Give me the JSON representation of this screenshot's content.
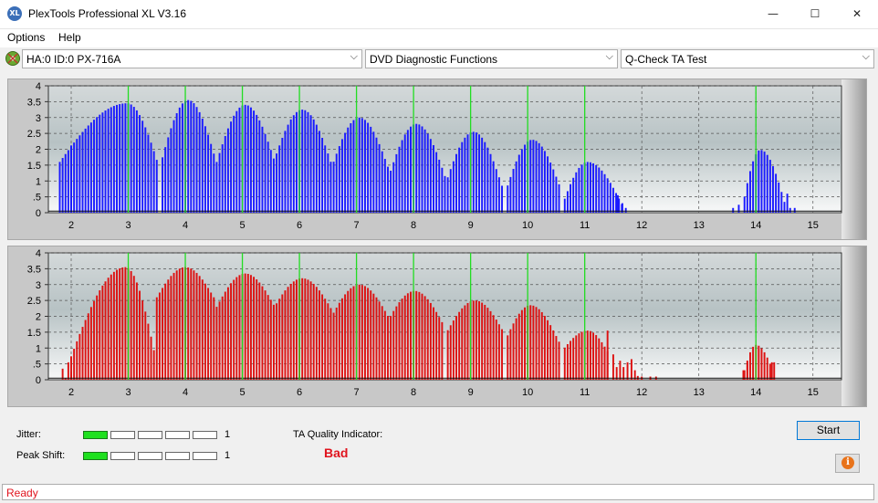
{
  "window": {
    "title": "PlexTools Professional XL V3.16",
    "icon_text": "XL",
    "minimize": "—",
    "maximize": "☐",
    "close": "✕"
  },
  "menu": {
    "items": [
      "Options",
      "Help"
    ]
  },
  "toolbar": {
    "drive": "HA:0 ID:0  PX-716A",
    "function": "DVD Diagnostic Functions",
    "test": "Q-Check TA Test",
    "arrow": "⌵"
  },
  "chart_data": [
    {
      "type": "bar",
      "name": "land-distribution",
      "color": "#1a1aff",
      "xlim": [
        1.6,
        15.5
      ],
      "ylim": [
        0,
        4
      ],
      "x_ticks": [
        2,
        3,
        4,
        5,
        6,
        7,
        8,
        9,
        10,
        11,
        12,
        13,
        14,
        15
      ],
      "y_ticks": [
        0,
        0.5,
        1,
        1.5,
        2,
        2.5,
        3,
        3.5,
        4
      ],
      "y_tick_labels": [
        "0",
        ".5",
        "1",
        "1.5",
        "2",
        "2.5",
        "3",
        "3.5",
        "4"
      ],
      "green_lines": [
        3,
        4,
        5,
        6,
        7,
        8,
        9,
        10,
        11,
        14
      ],
      "peaks": [
        {
          "x": 2.98,
          "y": 3.45,
          "left": 1.22,
          "right": 0.55,
          "base": 1.5
        },
        {
          "x": 4.05,
          "y": 3.55,
          "left": 0.48,
          "right": 0.5,
          "base": 1.55
        },
        {
          "x": 5.05,
          "y": 3.4,
          "left": 0.5,
          "right": 0.52,
          "base": 1.6
        },
        {
          "x": 6.05,
          "y": 3.25,
          "left": 0.52,
          "right": 0.52,
          "base": 1.5
        },
        {
          "x": 7.05,
          "y": 3.0,
          "left": 0.5,
          "right": 0.52,
          "base": 1.35
        },
        {
          "x": 8.05,
          "y": 2.8,
          "left": 0.5,
          "right": 0.52,
          "base": 1.05
        },
        {
          "x": 9.05,
          "y": 2.55,
          "left": 0.5,
          "right": 0.5,
          "base": 0.85
        },
        {
          "x": 10.08,
          "y": 2.3,
          "left": 0.45,
          "right": 0.5,
          "base": 0.75
        },
        {
          "x": 11.05,
          "y": 1.6,
          "left": 0.45,
          "right": 0.62,
          "base": 0.2
        },
        {
          "x": 14.08,
          "y": 1.98,
          "left": 0.32,
          "right": 0.45,
          "base": 0.15
        }
      ],
      "extras": [
        [
          2.0,
          2.12
        ],
        [
          11.58,
          0.55
        ],
        [
          11.66,
          0.3
        ],
        [
          11.72,
          0.15
        ],
        [
          13.6,
          0.15
        ],
        [
          13.7,
          0.25
        ],
        [
          14.55,
          0.6
        ],
        [
          14.6,
          0.15
        ],
        [
          14.68,
          0.15
        ]
      ],
      "gaps": [
        [
          11.8,
          13.55
        ],
        [
          14.8,
          15.5
        ]
      ]
    },
    {
      "type": "bar",
      "name": "pit-distribution",
      "color": "#dd1111",
      "xlim": [
        1.6,
        15.5
      ],
      "ylim": [
        0,
        4
      ],
      "x_ticks": [
        2,
        3,
        4,
        5,
        6,
        7,
        8,
        9,
        10,
        11,
        12,
        13,
        14,
        15
      ],
      "y_ticks": [
        0,
        0.5,
        1,
        1.5,
        2,
        2.5,
        3,
        3.5,
        4
      ],
      "y_tick_labels": [
        "0",
        ".5",
        "1",
        "1.5",
        "2",
        "2.5",
        "3",
        "3.5",
        "4"
      ],
      "green_lines": [
        3,
        4,
        5,
        6,
        7,
        8,
        9,
        10,
        11,
        14
      ],
      "peaks": [
        {
          "x": 2.95,
          "y": 3.55,
          "left": 1.0,
          "right": 0.55,
          "base": 0.5
        },
        {
          "x": 4.0,
          "y": 3.55,
          "left": 0.5,
          "right": 0.5,
          "base": 2.6
        },
        {
          "x": 5.05,
          "y": 3.35,
          "left": 0.5,
          "right": 0.52,
          "base": 2.3
        },
        {
          "x": 6.05,
          "y": 3.2,
          "left": 0.52,
          "right": 0.52,
          "base": 2.2
        },
        {
          "x": 7.05,
          "y": 3.0,
          "left": 0.5,
          "right": 0.52,
          "base": 1.95
        },
        {
          "x": 8.02,
          "y": 2.8,
          "left": 0.5,
          "right": 0.5,
          "base": 1.75
        },
        {
          "x": 9.08,
          "y": 2.5,
          "left": 0.5,
          "right": 0.5,
          "base": 1.5
        },
        {
          "x": 10.05,
          "y": 2.35,
          "left": 0.45,
          "right": 0.5,
          "base": 1.2
        },
        {
          "x": 11.05,
          "y": 1.55,
          "left": 0.45,
          "right": 0.35,
          "base": 0.9
        },
        {
          "x": 14.0,
          "y": 1.1,
          "left": 0.2,
          "right": 0.3,
          "base": 0.3
        }
      ],
      "extras": [
        [
          1.85,
          0.35
        ],
        [
          1.9,
          0.05
        ],
        [
          1.95,
          0.55
        ],
        [
          2.0,
          0.25
        ],
        [
          11.4,
          1.55
        ],
        [
          11.5,
          0.8
        ],
        [
          11.56,
          0.4
        ],
        [
          11.62,
          0.6
        ],
        [
          11.68,
          0.4
        ],
        [
          11.75,
          0.55
        ],
        [
          11.82,
          0.65
        ],
        [
          11.88,
          0.3
        ],
        [
          11.93,
          0.12
        ],
        [
          12.0,
          0.1
        ],
        [
          12.15,
          0.1
        ],
        [
          12.25,
          0.1
        ],
        [
          13.78,
          0.3
        ],
        [
          13.85,
          0.55
        ],
        [
          14.28,
          0.55
        ],
        [
          14.32,
          0.55
        ]
      ],
      "gaps": [
        [
          12.3,
          13.7
        ],
        [
          14.38,
          15.5
        ]
      ]
    }
  ],
  "bottom": {
    "jitter_label": "Jitter:",
    "jitter_value": "1",
    "jitter_level": 1,
    "peak_shift_label": "Peak Shift:",
    "peak_shift_value": "1",
    "peak_shift_level": 1,
    "ta_label": "TA Quality Indicator:",
    "ta_value": "Bad",
    "start_label": "Start",
    "info_icon": "i"
  },
  "status": {
    "text": "Ready"
  }
}
